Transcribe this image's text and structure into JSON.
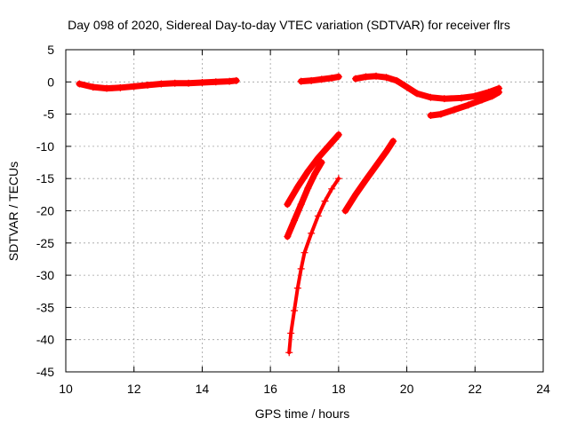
{
  "chart_data": {
    "type": "scatter",
    "title": "Day 098 of 2020, Sidereal Day-to-day VTEC variation (SDTVAR) for receiver flrs",
    "xlabel": "GPS time / hours",
    "ylabel": "SDTVAR / TECUs",
    "xlim": [
      10,
      24
    ],
    "ylim": [
      -45,
      5
    ],
    "xticks": [
      10,
      12,
      14,
      16,
      18,
      20,
      22,
      24
    ],
    "yticks": [
      5,
      0,
      -5,
      -10,
      -15,
      -20,
      -25,
      -30,
      -35,
      -40,
      -45
    ],
    "grid": true,
    "marker": "+",
    "color": "#ff0000",
    "series": [
      {
        "thin": false,
        "points": [
          [
            10.4,
            -0.3
          ],
          [
            10.8,
            -0.8
          ],
          [
            11.2,
            -1.0
          ],
          [
            11.6,
            -0.9
          ],
          [
            12.0,
            -0.7
          ],
          [
            12.4,
            -0.5
          ],
          [
            12.8,
            -0.3
          ],
          [
            13.2,
            -0.2
          ],
          [
            13.6,
            -0.2
          ],
          [
            14.0,
            -0.1
          ],
          [
            14.4,
            0.0
          ],
          [
            14.8,
            0.1
          ],
          [
            15.0,
            0.2
          ]
        ]
      },
      {
        "thin": false,
        "points": [
          [
            16.9,
            0.1
          ],
          [
            17.2,
            0.2
          ],
          [
            17.5,
            0.4
          ],
          [
            17.8,
            0.6
          ],
          [
            18.0,
            0.8
          ]
        ]
      },
      {
        "thin": false,
        "points": [
          [
            18.5,
            0.5
          ],
          [
            18.8,
            0.8
          ],
          [
            19.1,
            0.9
          ],
          [
            19.4,
            0.7
          ],
          [
            19.7,
            0.2
          ],
          [
            20.0,
            -0.8
          ],
          [
            20.3,
            -1.8
          ],
          [
            20.7,
            -2.4
          ],
          [
            21.1,
            -2.6
          ],
          [
            21.6,
            -2.5
          ],
          [
            22.0,
            -2.2
          ],
          [
            22.4,
            -1.6
          ],
          [
            22.7,
            -1.0
          ]
        ]
      },
      {
        "thin": false,
        "points": [
          [
            20.7,
            -5.2
          ],
          [
            21.0,
            -5.0
          ],
          [
            21.4,
            -4.3
          ],
          [
            21.8,
            -3.6
          ],
          [
            22.2,
            -2.8
          ],
          [
            22.5,
            -2.2
          ],
          [
            22.7,
            -1.6
          ]
        ]
      },
      {
        "thin": false,
        "points": [
          [
            16.5,
            -19.0
          ],
          [
            16.8,
            -16.3
          ],
          [
            17.1,
            -13.9
          ],
          [
            17.4,
            -11.8
          ],
          [
            17.7,
            -10.0
          ],
          [
            18.0,
            -8.2
          ]
        ]
      },
      {
        "thin": false,
        "points": [
          [
            16.5,
            -24.0
          ],
          [
            16.7,
            -21.5
          ],
          [
            16.9,
            -19.0
          ],
          [
            17.1,
            -16.5
          ],
          [
            17.3,
            -14.3
          ],
          [
            17.5,
            -12.5
          ]
        ]
      },
      {
        "thin": true,
        "points": [
          [
            16.55,
            -42.0
          ],
          [
            16.6,
            -39.0
          ],
          [
            16.7,
            -35.5
          ],
          [
            16.8,
            -32.0
          ],
          [
            16.9,
            -29.0
          ],
          [
            17.0,
            -26.5
          ],
          [
            17.2,
            -23.5
          ],
          [
            17.4,
            -20.8
          ],
          [
            17.6,
            -18.5
          ],
          [
            17.8,
            -16.6
          ],
          [
            18.0,
            -15.0
          ]
        ]
      },
      {
        "thin": false,
        "points": [
          [
            18.2,
            -20.0
          ],
          [
            18.5,
            -17.5
          ],
          [
            18.8,
            -15.2
          ],
          [
            19.1,
            -13.0
          ],
          [
            19.4,
            -10.8
          ],
          [
            19.6,
            -9.2
          ]
        ]
      }
    ]
  }
}
